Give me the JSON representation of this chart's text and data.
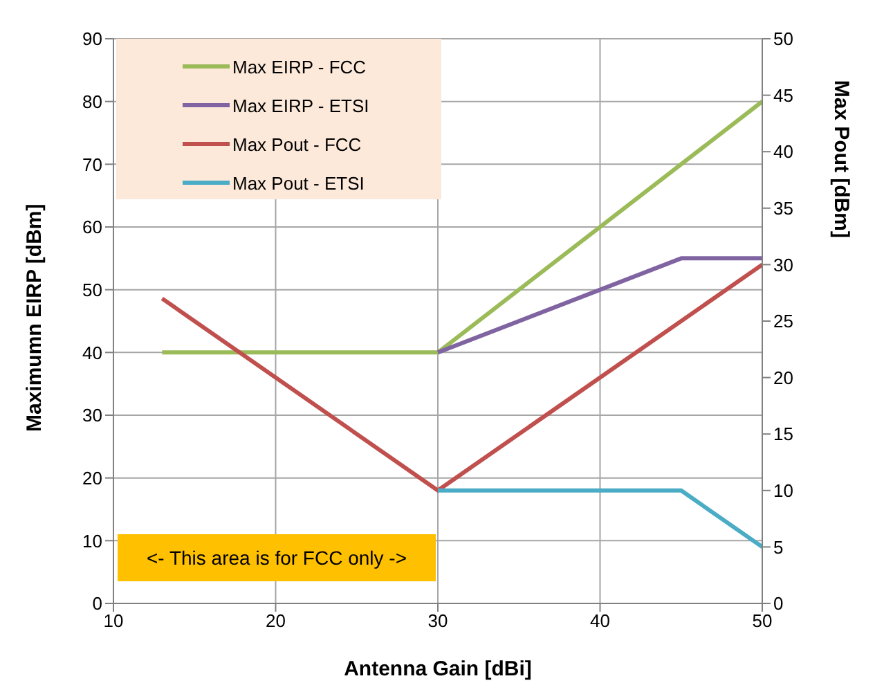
{
  "chart_data": {
    "type": "line",
    "xlabel": "Antenna Gain [dBi]",
    "ylabel": "Maximumn EIRP [dBm]",
    "y2label": "Max Pout [dBm]",
    "xlim": [
      10,
      50
    ],
    "xticks": [
      10,
      20,
      30,
      40,
      50
    ],
    "ylim": [
      0,
      90
    ],
    "yticks": [
      0,
      10,
      20,
      30,
      40,
      50,
      60,
      70,
      80,
      90
    ],
    "y2lim": [
      0,
      50
    ],
    "y2ticks": [
      0,
      5,
      10,
      15,
      20,
      25,
      30,
      35,
      40,
      45,
      50
    ],
    "grid": true,
    "legend": "top left",
    "marker": "none",
    "line_style": "solid",
    "annotations": [
      "<- This area is for FCC only ->"
    ],
    "series": [
      {
        "name": "Max EIRP - FCC",
        "color": "#9bbb59",
        "x": [
          13,
          30,
          50
        ],
        "values": [
          40,
          40,
          80
        ]
      },
      {
        "name": "Max EIRP - ETSI",
        "color": "#8064a2",
        "x": [
          30,
          45,
          50
        ],
        "values": [
          40,
          55,
          55
        ]
      },
      {
        "name": "Max Pout - FCC",
        "color": "#c0504d",
        "axis": "y2",
        "x": [
          13,
          30,
          50
        ],
        "values": [
          27,
          10,
          30
        ]
      },
      {
        "name": "Max Pout - ETSI",
        "color": "#4bacc6",
        "axis": "y2",
        "x": [
          30,
          45,
          50
        ],
        "values": [
          10,
          10,
          5
        ]
      }
    ]
  }
}
